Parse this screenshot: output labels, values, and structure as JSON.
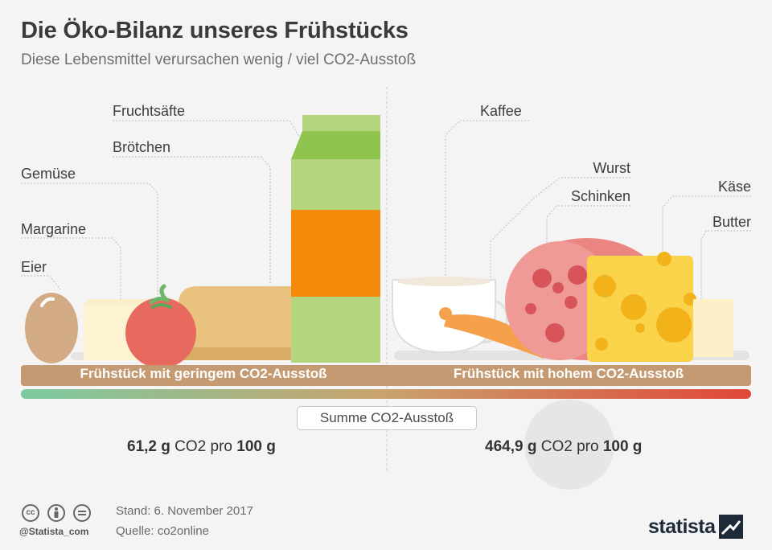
{
  "title": "Die Öko-Bilanz unseres Frühstücks",
  "subtitle": "Diese Lebensmittel verursachen wenig / viel CO2-Ausstoß",
  "low": {
    "band_label": "Frühstück mit geringem CO2-Ausstoß",
    "items": [
      "Fruchtsäfte",
      "Brötchen",
      "Gemüse",
      "Margarine",
      "Eier"
    ],
    "result_value": "61,2 g",
    "result_mid": "CO2 pro",
    "result_unit": "100 g"
  },
  "high": {
    "band_label": "Frühstück mit hohem CO2-Ausstoß",
    "items": [
      "Kaffee",
      "Wurst",
      "Schinken",
      "Käse",
      "Butter"
    ],
    "result_value": "464,9 g",
    "result_mid": "CO2 pro",
    "result_unit": "100 g"
  },
  "sum_label": "Summe CO2-Ausstoß",
  "footer": {
    "handle": "@Statista_com",
    "stand": "Stand: 6. November 2017",
    "quelle": "Quelle: co2online",
    "logo": "statista"
  },
  "colors": {
    "band": "#c49a72",
    "gradient_start": "#7ccaa0",
    "gradient_end": "#e0463a",
    "juice_green": "#b5d67e",
    "juice_orange": "#f58a0a",
    "cheese": "#fbd34a",
    "salami": "#e88a86"
  }
}
